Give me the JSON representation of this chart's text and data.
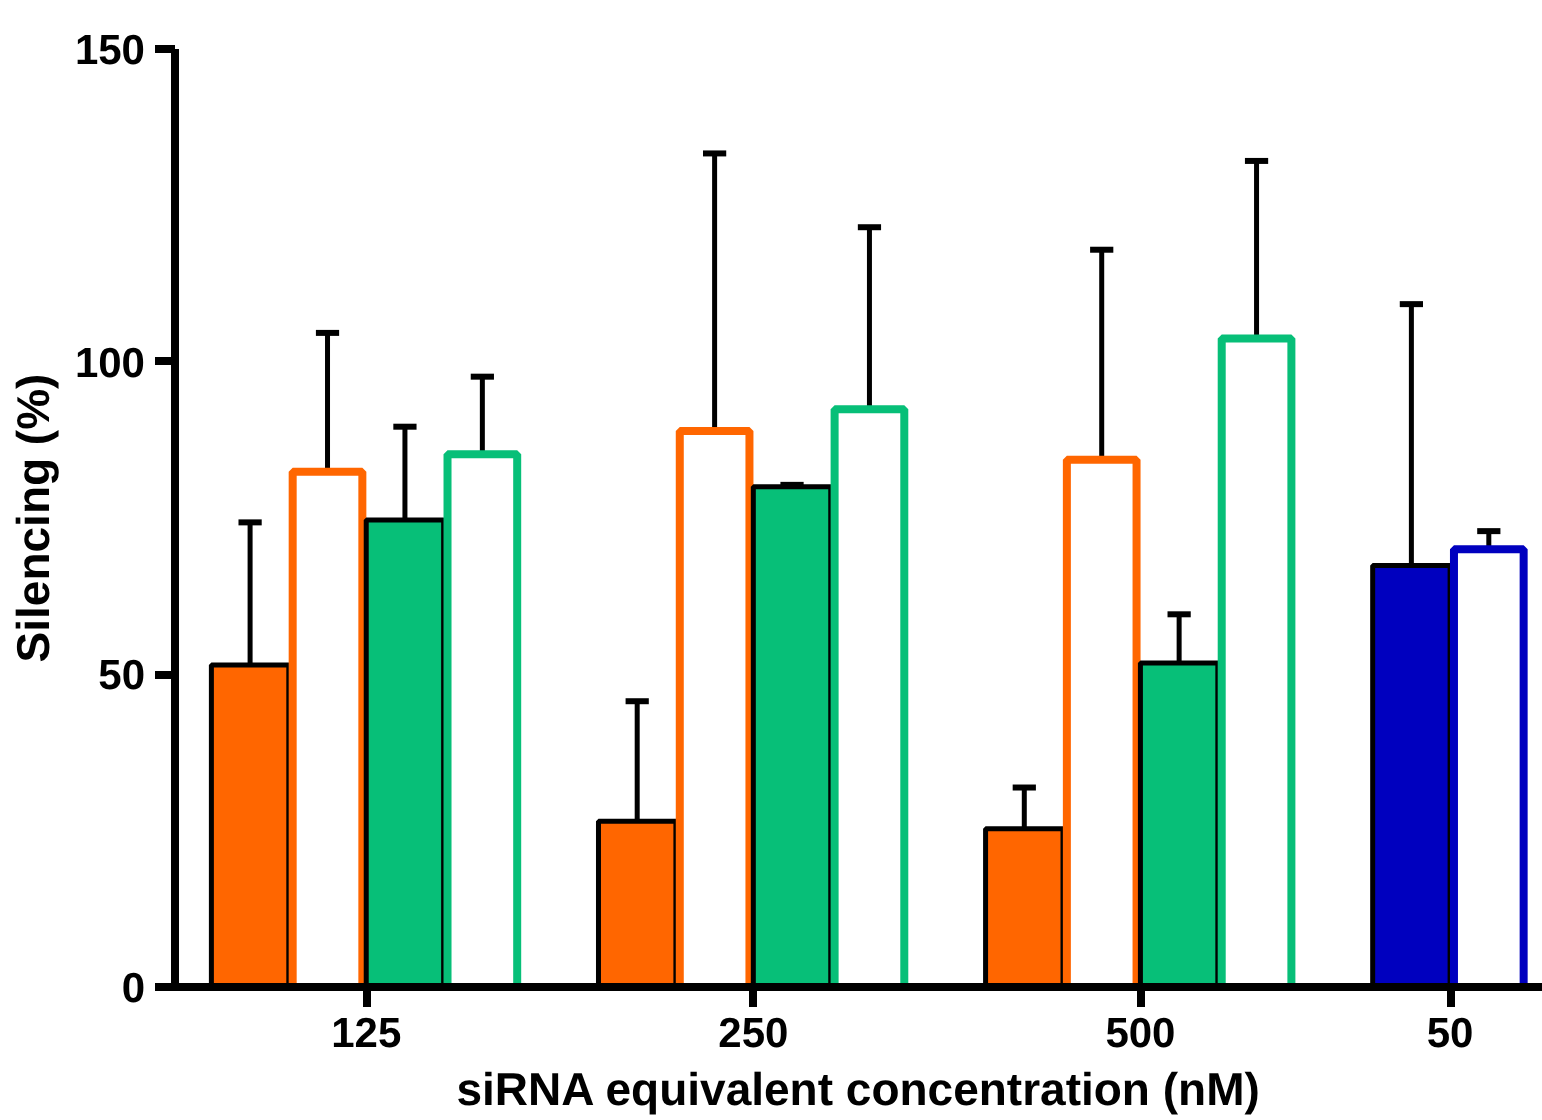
{
  "chart_data": {
    "type": "bar",
    "xlabel": "siRNA equivalent concentration (nM)",
    "ylabel": "Silencing (%)",
    "categories": [
      "125",
      "250",
      "500",
      "50"
    ],
    "series": [
      {
        "color": "#ff6600",
        "values": [
          51.5,
          26.5,
          25.3,
          null
        ],
        "errors": [
          [
            51.5,
            74.3
          ],
          [
            26.5,
            45.7
          ],
          [
            25.3,
            31.9
          ],
          null
        ]
      },
      {
        "color": "#ffffff",
        "values": [
          82.4,
          88.9,
          84.3,
          null
        ],
        "errors": [
          [
            82.4,
            104.6
          ],
          [
            88.9,
            133.3
          ],
          [
            84.3,
            117.9
          ],
          null
        ]
      },
      {
        "color": "#07bf78",
        "values": [
          74.7,
          80.0,
          51.8,
          null
        ],
        "errors": [
          [
            74.7,
            89.6
          ],
          [
            80.0,
            80.3
          ],
          [
            51.8,
            59.6
          ],
          null
        ]
      },
      {
        "color": "#ffffff",
        "values": [
          85.2,
          92.4,
          103.7,
          null
        ],
        "errors": [
          [
            85.2,
            97.6
          ],
          [
            92.4,
            121.5
          ],
          [
            103.7,
            132.1
          ],
          null
        ]
      },
      {
        "color": "#0000bf",
        "values": [
          null,
          null,
          null,
          67.4
        ],
        "errors": [
          null,
          null,
          null,
          [
            67.4,
            109.2
          ]
        ]
      },
      {
        "color": "#ffffff",
        "values": [
          null,
          null,
          null,
          70.0
        ],
        "errors": [
          null,
          null,
          null,
          [
            70.0,
            72.9
          ]
        ]
      }
    ],
    "ylim": [
      0,
      150
    ],
    "yticks": [
      0,
      50,
      100,
      150
    ],
    "grid": false
  }
}
